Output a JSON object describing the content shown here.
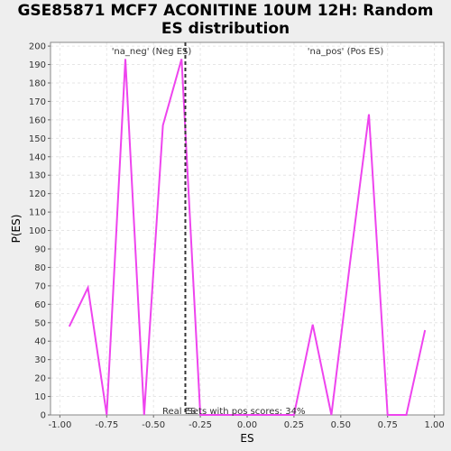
{
  "title": {
    "line1": "GSE85871 MCF7 ACONITINE 10UM 12H: Random",
    "line2": "ES distribution"
  },
  "colors": {
    "line": "#ee44ee",
    "neg_label": "#4444bb",
    "pos_label": "#dd4444",
    "marker": "#333333",
    "plot_bg": "#ffffff",
    "page_bg": "#eeeeee",
    "grid": "#e6e6e6"
  },
  "chart_data": {
    "type": "line",
    "title": "GSE85871 MCF7 ACONITINE 10UM 12H: Random ES distribution",
    "xlabel": "ES",
    "ylabel": "P(ES)",
    "xlim": [
      -1.05,
      1.05
    ],
    "ylim": [
      0,
      202
    ],
    "xticks": [
      -1.0,
      -0.75,
      -0.5,
      -0.25,
      0.0,
      0.25,
      0.5,
      0.75,
      1.0
    ],
    "xtick_labels": [
      "-1.00",
      "-0.75",
      "-0.50",
      "-0.25",
      "0.00",
      "0.25",
      "0.50",
      "0.75",
      "1.00"
    ],
    "yticks": [
      0,
      10,
      20,
      30,
      40,
      50,
      60,
      70,
      80,
      90,
      100,
      110,
      120,
      130,
      140,
      150,
      160,
      170,
      180,
      190,
      200
    ],
    "ytick_labels": [
      "0",
      "10",
      "20",
      "30",
      "40",
      "50",
      "60",
      "70",
      "80",
      "90",
      "100",
      "110",
      "120",
      "130",
      "140",
      "150",
      "160",
      "170",
      "180",
      "190",
      "200"
    ],
    "grid": true,
    "series": [
      {
        "x": [
          -0.95,
          -0.85,
          -0.75,
          -0.65,
          -0.55,
          -0.45,
          -0.35,
          -0.25,
          -0.15,
          -0.05,
          0.05,
          0.15,
          0.25,
          0.35,
          0.45,
          0.55,
          0.65,
          0.75,
          0.85,
          0.95
        ],
        "y": [
          48,
          69,
          0,
          193,
          0,
          157,
          193,
          0,
          0,
          0,
          0,
          0,
          0,
          49,
          0,
          83,
          163,
          0,
          0,
          46
        ]
      }
    ],
    "real_es": -0.33,
    "annotations": {
      "neg_label": "'na_neg' (Neg ES)",
      "pos_label": "'na_pos' (Pos ES)",
      "real_es_label": "Real ES",
      "pos_scores_label": "Sets with pos scores: 34%"
    }
  }
}
